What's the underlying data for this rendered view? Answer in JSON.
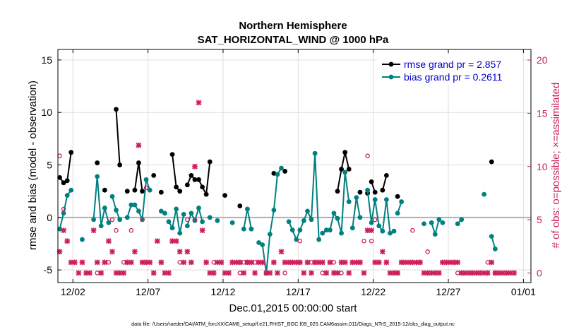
{
  "chart_data": {
    "type": "line",
    "title": "Northern Hemisphere",
    "subtitle": "SAT_HORIZONTAL_WIND @ 1000 hPa",
    "xlabel": "Dec.01,2015 00:00:00 start",
    "ylabel": "rmse and bias (model - observation)",
    "y2label": "# of obs: o=possible; ×=assimilated",
    "footnote": "data file: /Users/raeder/DAI/ATM_forcXX/CAM6_setup/f.e21.FHIST_BGC.f09_025.CAM6assim.011/Diags_NTrS_2015-12/obs_diag_output.nc",
    "xlim": [
      0,
      31.5
    ],
    "ylim": [
      -6.2,
      16
    ],
    "y2lim": [
      -0.9,
      21
    ],
    "x_ticks": [
      {
        "value": 1,
        "label": "12/02"
      },
      {
        "value": 6,
        "label": "12/07"
      },
      {
        "value": 11,
        "label": "12/12"
      },
      {
        "value": 16,
        "label": "12/17"
      },
      {
        "value": 21,
        "label": "12/22"
      },
      {
        "value": 26,
        "label": "12/27"
      },
      {
        "value": 31,
        "label": "01/01"
      }
    ],
    "y_ticks": [
      -5,
      0,
      5,
      10,
      15
    ],
    "y2_ticks": [
      0,
      5,
      10,
      15,
      20
    ],
    "zero_line": 0,
    "grid": true,
    "legend_position": "top-right",
    "colors": {
      "rmse": "#000000",
      "bias": "#008080",
      "obs": "#cc1f5c",
      "legend_text": "#0000cc",
      "zero_line": "#b0b0b0",
      "grid": "#dddddd"
    },
    "series": [
      {
        "name": "rmse grand pr = 2.857",
        "key": "rmse",
        "segments": [
          [
            [
              0.12,
              3.8
            ],
            [
              0.38,
              3.3
            ],
            [
              0.62,
              3.5
            ],
            [
              0.88,
              6.2
            ]
          ],
          [
            [
              2.62,
              5.2
            ]
          ],
          [
            [
              3.12,
              2.6
            ]
          ],
          [
            [
              3.88,
              10.3
            ],
            [
              4.12,
              5.0
            ]
          ],
          [
            [
              4.62,
              2.5
            ]
          ],
          [
            [
              5.12,
              2.6
            ],
            [
              5.38,
              5.2
            ],
            [
              5.62,
              2.5
            ]
          ],
          [
            [
              6.38,
              4.0
            ]
          ],
          [
            [
              6.88,
              2.4
            ]
          ],
          [
            [
              7.62,
              6.0
            ],
            [
              7.88,
              2.9
            ],
            [
              8.12,
              2.5
            ]
          ],
          [
            [
              8.62,
              3.1
            ],
            [
              8.88,
              4.0
            ],
            [
              9.12,
              3.6
            ],
            [
              9.38,
              3.6
            ],
            [
              9.62,
              2.9
            ],
            [
              9.88,
              2.2
            ],
            [
              10.12,
              5.3
            ]
          ],
          [
            [
              11.12,
              2.1
            ]
          ],
          [
            [
              12.12,
              1.1
            ]
          ],
          [
            [
              14.38,
              4.2
            ]
          ],
          [
            [
              15.12,
              4.4
            ]
          ],
          [
            [
              18.62,
              2.5
            ],
            [
              18.88,
              4.6
            ],
            [
              19.12,
              6.2
            ],
            [
              19.38,
              4.6
            ]
          ],
          [
            [
              20.12,
              2.4
            ]
          ],
          [
            [
              20.62,
              2.3
            ]
          ],
          [
            [
              20.88,
              3.4
            ],
            [
              21.12,
              2.4
            ]
          ],
          [
            [
              21.62,
              2.6
            ],
            [
              21.88,
              4.0
            ]
          ],
          [
            [
              22.62,
              2.0
            ]
          ],
          [
            [
              28.88,
              5.3
            ]
          ]
        ]
      },
      {
        "name": "bias grand pr = 0.2611",
        "key": "bias",
        "segments": [
          [
            [
              0.12,
              -1.1
            ],
            [
              0.38,
              0.4
            ],
            [
              0.62,
              2.1
            ],
            [
              0.88,
              2.6
            ]
          ],
          [
            [
              1.62,
              -2.1
            ]
          ],
          [
            [
              2.38,
              -0.2
            ],
            [
              2.62,
              3.9
            ],
            [
              2.88,
              -0.8
            ],
            [
              3.12,
              0.9
            ],
            [
              3.38,
              -0.5
            ]
          ],
          [
            [
              3.62,
              2.0
            ],
            [
              3.88,
              0.7
            ],
            [
              4.12,
              -0.2
            ]
          ],
          [
            [
              4.62,
              0.0
            ],
            [
              4.88,
              1.2
            ],
            [
              5.12,
              1.2
            ],
            [
              5.38,
              0.6
            ],
            [
              5.62,
              -0.2
            ],
            [
              5.88,
              3.6
            ],
            [
              6.12,
              2.6
            ]
          ],
          [
            [
              6.88,
              0.6
            ],
            [
              7.12,
              0.4
            ]
          ],
          [
            [
              7.38,
              -0.4
            ],
            [
              7.62,
              -1.0
            ],
            [
              7.88,
              0.8
            ],
            [
              8.12,
              -1.5
            ],
            [
              8.38,
              0.3
            ]
          ],
          [
            [
              8.62,
              -0.8
            ],
            [
              8.88,
              0.4
            ],
            [
              9.12,
              -0.3
            ],
            [
              9.38,
              0.9
            ],
            [
              9.62,
              -0.4
            ]
          ],
          [
            [
              10.12,
              0.0
            ]
          ],
          [
            [
              10.62,
              -0.3
            ]
          ],
          [
            [
              11.62,
              -0.5
            ]
          ],
          [
            [
              12.38,
              -1.1
            ],
            [
              12.62,
              0.8
            ],
            [
              12.88,
              -1.1
            ]
          ],
          [
            [
              13.38,
              -2.4
            ],
            [
              13.62,
              -2.6
            ],
            [
              13.88,
              -5.3
            ],
            [
              14.12,
              -1.6
            ],
            [
              14.38,
              0.7
            ],
            [
              14.62,
              4.1
            ],
            [
              14.88,
              4.7
            ]
          ],
          [
            [
              15.38,
              -0.4
            ],
            [
              15.62,
              -1.2
            ],
            [
              15.88,
              -2.1
            ],
            [
              16.12,
              -1.2
            ],
            [
              16.38,
              -0.3
            ],
            [
              16.62,
              0.6
            ],
            [
              16.88,
              -0.2
            ],
            [
              17.12,
              6.1
            ],
            [
              17.38,
              -2.1
            ]
          ],
          [
            [
              17.62,
              -1.5
            ],
            [
              17.88,
              -1.2
            ],
            [
              18.12,
              -1.2
            ],
            [
              18.38,
              0.4
            ],
            [
              18.62,
              -0.1
            ],
            [
              18.88,
              -1.5
            ],
            [
              19.12,
              4.3
            ],
            [
              19.38,
              1.5
            ]
          ],
          [
            [
              19.62,
              -1.0
            ],
            [
              19.88,
              1.9
            ],
            [
              20.12,
              0.0
            ]
          ],
          [
            [
              20.62,
              2.6
            ],
            [
              20.88,
              -0.5
            ],
            [
              21.12,
              1.7
            ],
            [
              21.38,
              -0.8
            ],
            [
              21.62,
              -1.3
            ],
            [
              21.88,
              1.7
            ],
            [
              22.12,
              -1.5
            ],
            [
              22.38,
              -1.3
            ]
          ],
          [
            [
              22.62,
              0.4
            ],
            [
              22.88,
              1.5
            ]
          ],
          [
            [
              24.38,
              -0.6
            ]
          ],
          [
            [
              24.88,
              -0.5
            ],
            [
              25.12,
              -1.6
            ],
            [
              25.38,
              -0.2
            ]
          ],
          [
            [
              25.62,
              -0.5
            ]
          ],
          [
            [
              26.62,
              -0.6
            ],
            [
              26.88,
              -0.2
            ]
          ],
          [
            [
              28.38,
              2.2
            ]
          ],
          [
            [
              28.88,
              -1.8
            ],
            [
              29.12,
              -3.0
            ]
          ]
        ]
      }
    ],
    "obs_assimilated": [
      [
        0.12,
        2
      ],
      [
        0.38,
        4
      ],
      [
        0.62,
        3
      ],
      [
        0.88,
        1
      ],
      [
        1.12,
        1
      ],
      [
        1.38,
        0
      ],
      [
        1.62,
        1
      ],
      [
        1.88,
        0
      ],
      [
        2.12,
        0
      ],
      [
        2.38,
        4
      ],
      [
        2.62,
        1
      ],
      [
        2.88,
        0
      ],
      [
        3.12,
        1
      ],
      [
        3.38,
        3
      ],
      [
        3.62,
        2
      ],
      [
        3.88,
        0
      ],
      [
        4.12,
        0
      ],
      [
        4.38,
        0
      ],
      [
        4.62,
        1
      ],
      [
        4.88,
        1
      ],
      [
        5.12,
        2
      ],
      [
        5.38,
        12
      ],
      [
        5.62,
        1
      ],
      [
        5.88,
        1
      ],
      [
        6.12,
        1
      ],
      [
        6.38,
        0
      ],
      [
        6.62,
        3
      ],
      [
        6.88,
        1
      ],
      [
        7.12,
        0
      ],
      [
        7.38,
        0
      ],
      [
        7.62,
        3
      ],
      [
        7.88,
        3
      ],
      [
        8.12,
        2
      ],
      [
        8.38,
        1
      ],
      [
        8.62,
        2
      ],
      [
        8.88,
        1
      ],
      [
        9.12,
        10
      ],
      [
        9.38,
        16
      ],
      [
        9.62,
        4
      ],
      [
        9.88,
        1
      ],
      [
        10.12,
        0
      ],
      [
        10.38,
        0
      ],
      [
        10.62,
        1
      ],
      [
        10.88,
        1
      ],
      [
        11.12,
        0
      ],
      [
        11.38,
        0
      ],
      [
        11.62,
        1
      ],
      [
        11.88,
        1
      ],
      [
        12.12,
        1
      ],
      [
        12.38,
        0
      ],
      [
        12.62,
        1
      ],
      [
        12.88,
        1
      ],
      [
        13.12,
        0
      ],
      [
        13.38,
        1
      ],
      [
        13.62,
        1
      ],
      [
        13.88,
        0
      ],
      [
        14.12,
        0
      ],
      [
        14.38,
        1
      ],
      [
        14.62,
        0
      ],
      [
        14.88,
        2
      ],
      [
        15.12,
        1
      ],
      [
        15.38,
        1
      ],
      [
        15.62,
        1
      ],
      [
        15.88,
        1
      ],
      [
        16.12,
        1
      ],
      [
        16.38,
        0
      ],
      [
        16.62,
        1
      ],
      [
        16.88,
        0
      ],
      [
        17.12,
        1
      ],
      [
        17.38,
        1
      ],
      [
        17.62,
        1
      ],
      [
        17.88,
        0
      ],
      [
        18.12,
        1
      ],
      [
        18.38,
        0
      ],
      [
        18.62,
        0
      ],
      [
        18.88,
        1
      ],
      [
        19.12,
        1
      ],
      [
        19.38,
        0
      ],
      [
        19.62,
        1
      ],
      [
        19.88,
        1
      ],
      [
        20.12,
        1
      ],
      [
        20.38,
        0
      ],
      [
        20.62,
        4
      ],
      [
        20.88,
        4
      ],
      [
        21.12,
        1
      ],
      [
        21.38,
        1
      ],
      [
        21.62,
        2
      ],
      [
        21.88,
        1
      ],
      [
        22.12,
        0
      ],
      [
        22.38,
        0
      ],
      [
        22.62,
        0
      ],
      [
        22.88,
        1
      ],
      [
        23.12,
        1
      ],
      [
        23.38,
        1
      ],
      [
        23.62,
        1
      ],
      [
        23.88,
        1
      ],
      [
        24.12,
        1
      ],
      [
        24.38,
        0
      ],
      [
        24.62,
        0
      ],
      [
        24.88,
        0
      ],
      [
        25.12,
        0
      ],
      [
        25.38,
        0
      ],
      [
        25.62,
        1
      ],
      [
        25.88,
        1
      ],
      [
        26.12,
        1
      ],
      [
        26.38,
        1
      ],
      [
        26.62,
        1
      ],
      [
        26.88,
        0
      ],
      [
        27.12,
        0
      ],
      [
        27.38,
        0
      ],
      [
        27.62,
        0
      ],
      [
        27.88,
        0
      ],
      [
        28.12,
        0
      ],
      [
        28.38,
        0
      ],
      [
        28.62,
        0
      ],
      [
        28.88,
        1
      ],
      [
        29.12,
        0
      ],
      [
        29.38,
        0
      ],
      [
        29.62,
        0
      ],
      [
        29.88,
        0
      ],
      [
        30.12,
        0
      ],
      [
        30.38,
        0
      ]
    ],
    "obs_possible": [
      [
        0.12,
        11
      ],
      [
        0.38,
        6
      ],
      [
        2.62,
        0
      ],
      [
        3.38,
        1
      ],
      [
        3.62,
        5
      ],
      [
        3.88,
        4
      ],
      [
        4.38,
        1
      ],
      [
        4.88,
        4
      ],
      [
        5.62,
        5
      ],
      [
        5.88,
        8
      ],
      [
        8.12,
        1
      ],
      [
        8.62,
        5
      ],
      [
        9.12,
        5
      ],
      [
        10.38,
        1
      ],
      [
        12.12,
        0
      ],
      [
        12.38,
        1
      ],
      [
        12.62,
        1
      ],
      [
        13.12,
        1
      ],
      [
        13.88,
        0
      ],
      [
        15.12,
        0
      ],
      [
        16.12,
        3
      ],
      [
        16.88,
        1
      ],
      [
        17.62,
        0
      ],
      [
        18.38,
        1
      ],
      [
        18.88,
        0
      ],
      [
        20.62,
        11
      ],
      [
        20.88,
        3
      ],
      [
        20.38,
        3
      ],
      [
        21.12,
        5
      ],
      [
        22.62,
        0
      ],
      [
        23.62,
        4
      ],
      [
        24.62,
        2
      ],
      [
        26.62,
        0
      ],
      [
        28.62,
        1
      ],
      [
        29.12,
        0
      ]
    ]
  }
}
